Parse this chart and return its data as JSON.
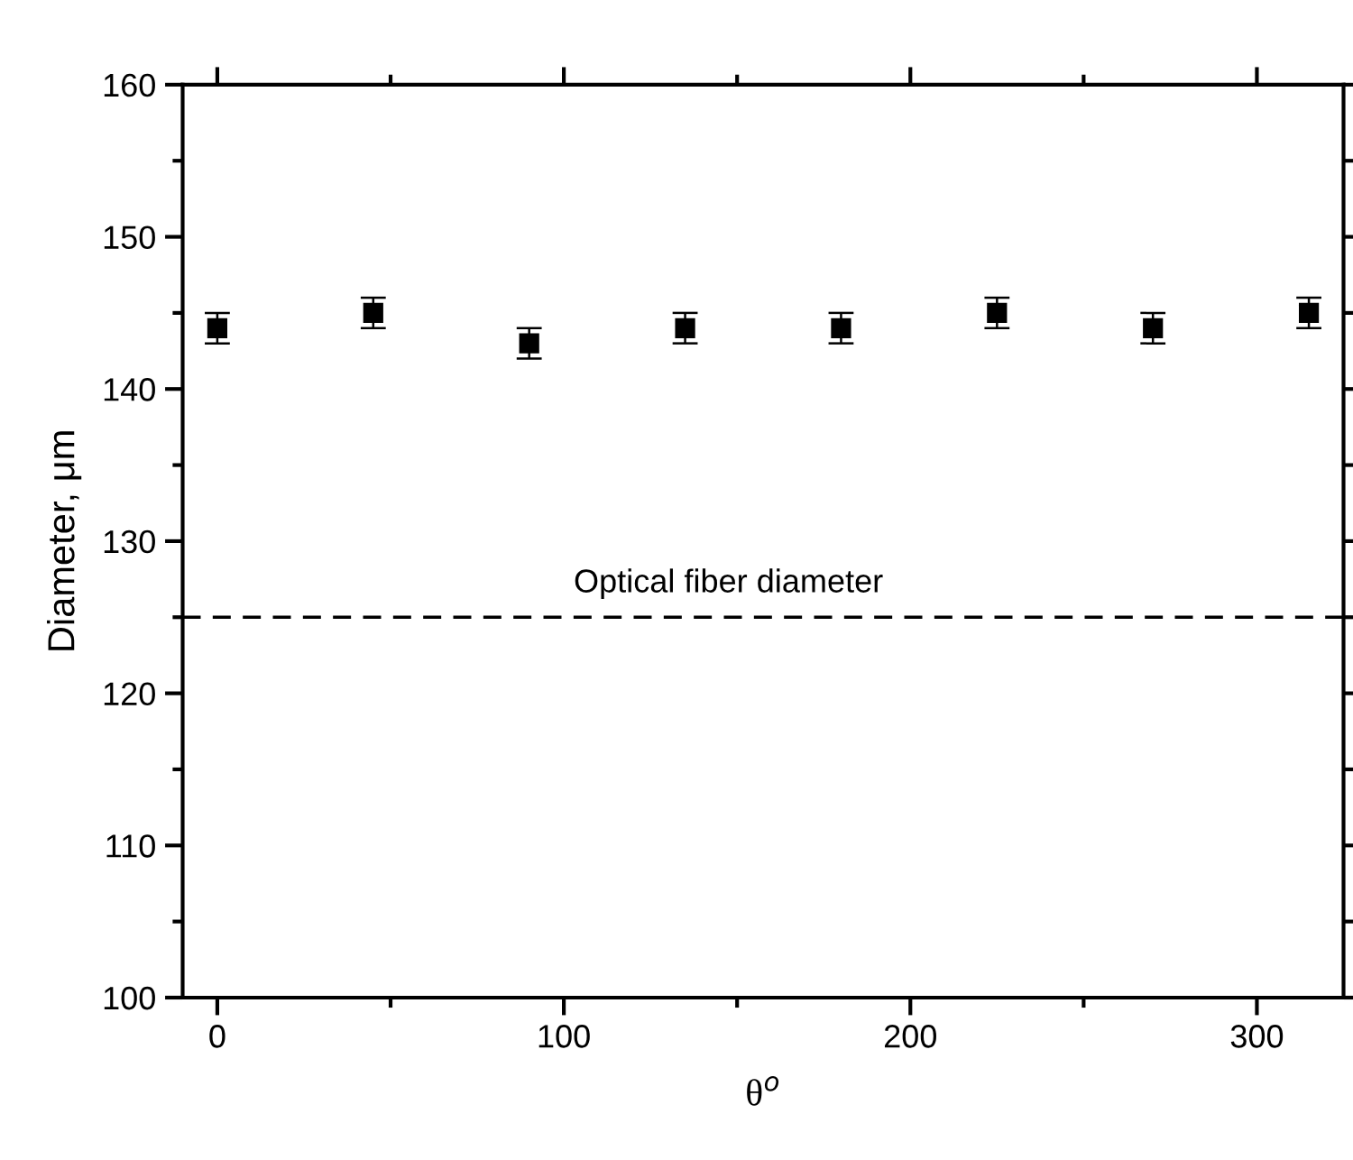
{
  "chart_data": {
    "type": "scatter",
    "xlabel": "θ$^{o}$",
    "ylabel": "Diameter, μm",
    "x": [
      0,
      45,
      90,
      135,
      180,
      225,
      270,
      315
    ],
    "series": [
      {
        "color": "#000000",
        "values": [
          144,
          145,
          143,
          144,
          144,
          145,
          144,
          145
        ],
        "errors": [
          1,
          1,
          1,
          1,
          1,
          1,
          1,
          1
        ]
      }
    ],
    "xlim": [
      -10,
      325
    ],
    "ylim": [
      100,
      160
    ],
    "xticks": [
      0,
      100,
      200,
      300
    ],
    "yticks": [
      100,
      110,
      120,
      130,
      140,
      150,
      160
    ],
    "ref_lines": [
      {
        "axis": "y",
        "value": 125,
        "label": "Optical fiber diameter",
        "color": "#000000",
        "line_style": "dashed"
      }
    ],
    "marker": "square",
    "grid": false,
    "legend": false
  }
}
